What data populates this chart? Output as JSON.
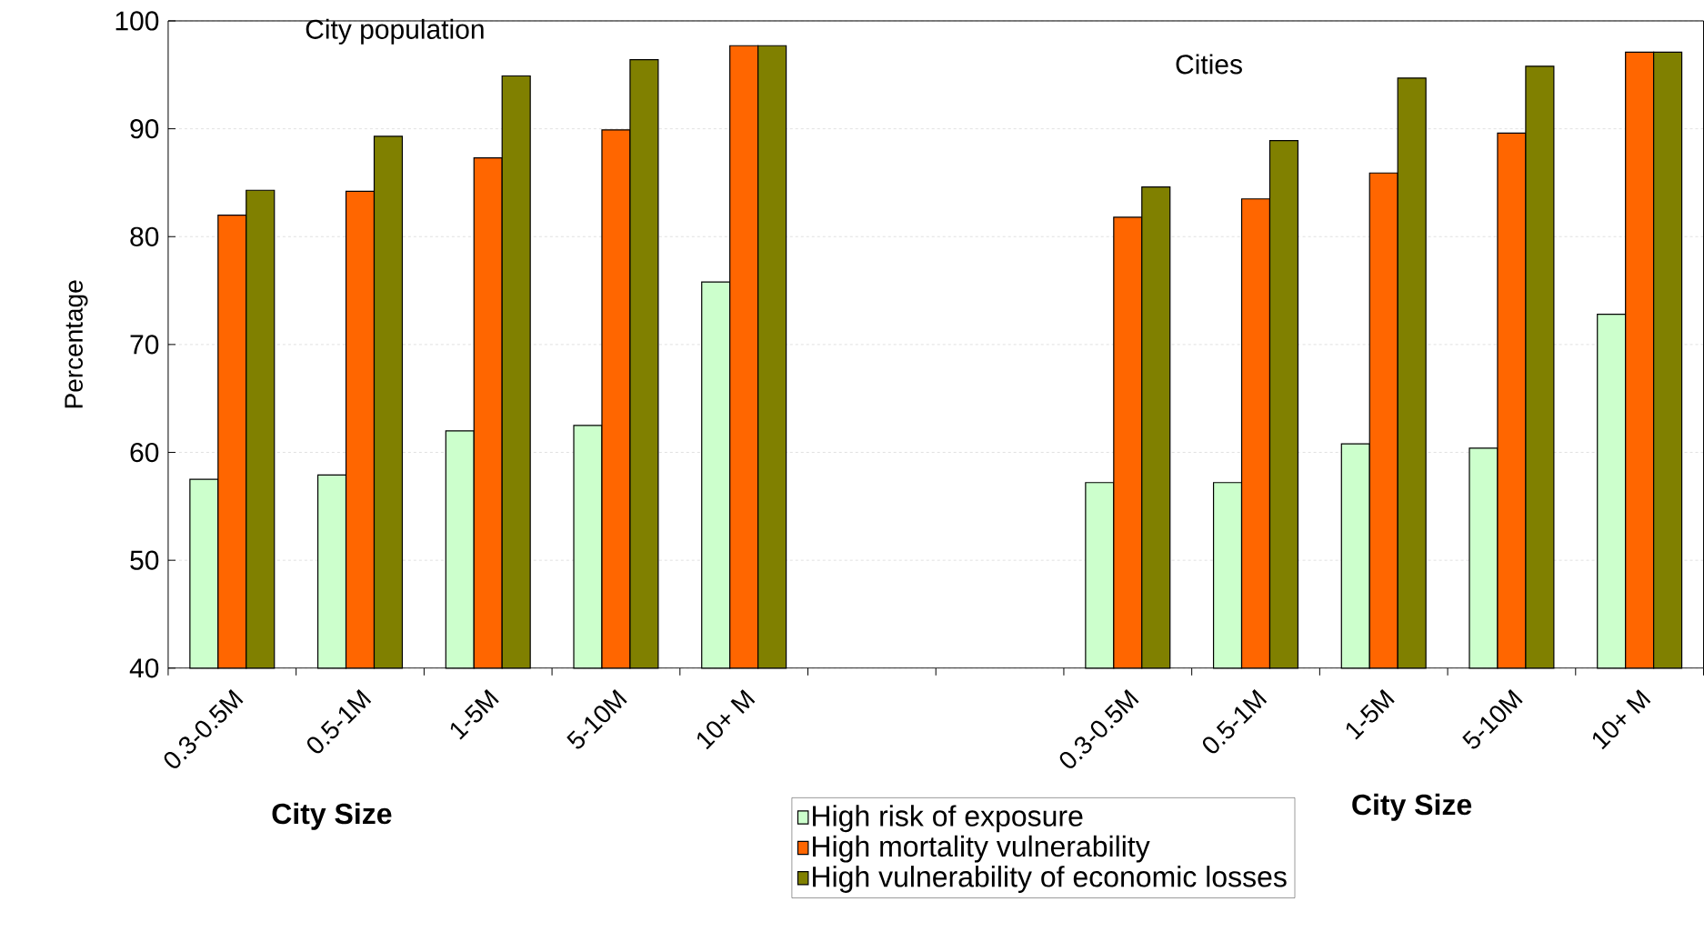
{
  "chart_data": {
    "type": "bar",
    "ylabel": "Percentage",
    "xlabel": "City Size",
    "categories": [
      "0.3-0.5M",
      "0.5-1M",
      "1-5M",
      "5-10M",
      "10+ M",
      null,
      null,
      "0.3-0.5M",
      "0.5-1M",
      "1-5M",
      "5-10M",
      "10+ M"
    ],
    "series": [
      {
        "name": "High risk of exposure",
        "color": "#ccffcc",
        "values": [
          57.5,
          57.9,
          62.0,
          62.5,
          75.8,
          null,
          null,
          57.2,
          57.2,
          60.8,
          60.4,
          72.8
        ]
      },
      {
        "name": "High mortality vulnerability",
        "color": "#ff6600",
        "values": [
          82.0,
          84.2,
          87.3,
          89.9,
          97.7,
          null,
          null,
          81.8,
          83.5,
          85.9,
          89.6,
          97.1
        ]
      },
      {
        "name": "High vulnerability of economic losses",
        "color": "#808000",
        "values": [
          84.3,
          89.3,
          94.9,
          96.4,
          97.7,
          null,
          null,
          84.6,
          88.9,
          94.7,
          95.8,
          97.1
        ]
      }
    ],
    "annotations": [
      "City population",
      "Cities",
      "City Size"
    ],
    "ylim": [
      40,
      100
    ],
    "yticks": [
      40,
      50,
      60,
      70,
      80,
      90,
      100
    ],
    "grid": "y",
    "legend": "bottom"
  }
}
